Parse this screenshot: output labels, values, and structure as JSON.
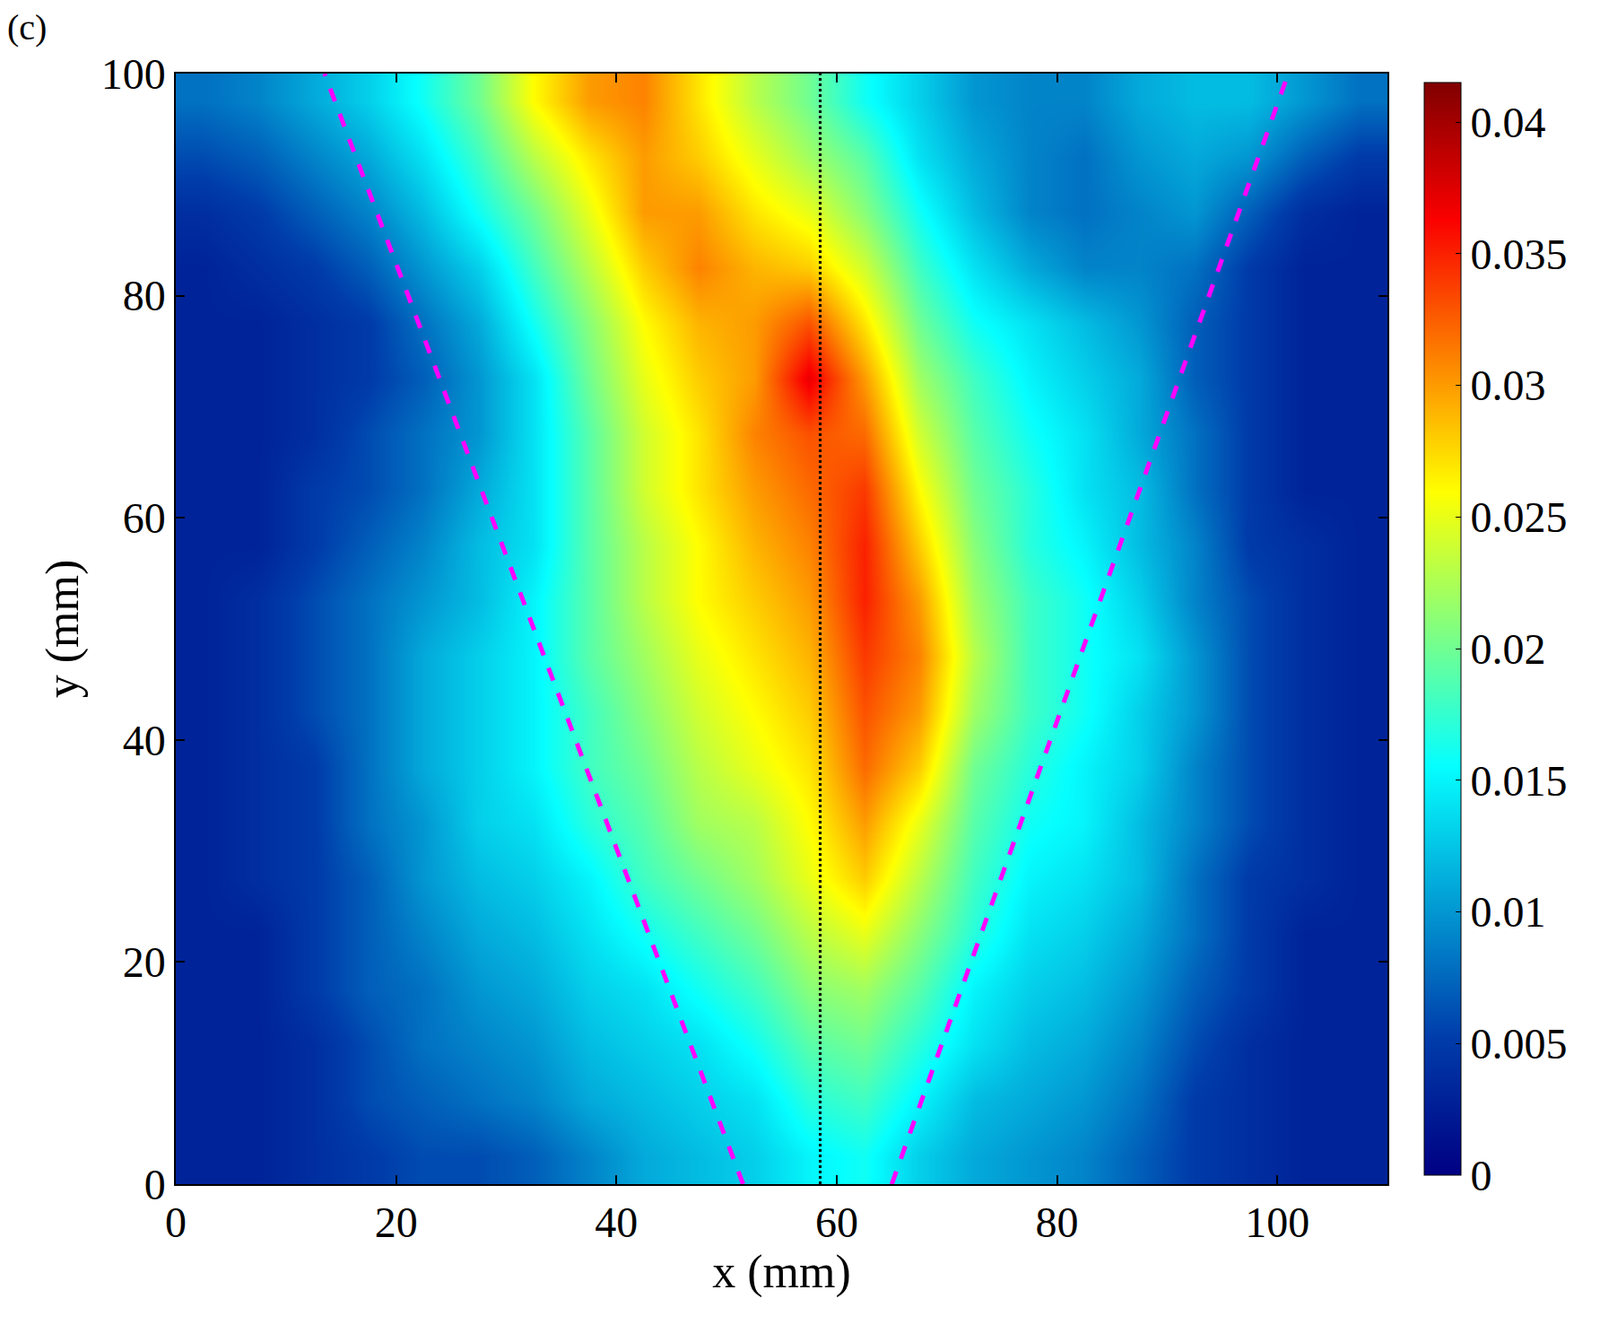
{
  "chart_data": {
    "type": "heatmap",
    "panel_label": "(c)",
    "x_label": "x (mm)",
    "y_label": "y (mm)",
    "xlim": [
      0,
      110
    ],
    "ylim": [
      0,
      100
    ],
    "xticks": [
      0,
      20,
      40,
      60,
      80,
      100
    ],
    "yticks": [
      0,
      20,
      40,
      60,
      80,
      100
    ],
    "grid": false,
    "color": "Jet",
    "color_range": [
      0,
      0.0415
    ],
    "color_ticks": [
      0,
      0.005,
      0.01,
      0.015,
      0.02,
      0.025,
      0.03,
      0.035,
      0.04
    ],
    "x": [
      2.5,
      7.5,
      12.5,
      17.5,
      22.5,
      27.5,
      32.5,
      37.5,
      42.5,
      47.5,
      52.5,
      57.5,
      62.5,
      67.5,
      72.5,
      77.5,
      82.5,
      87.5,
      92.5,
      97.5,
      102.5,
      107.5
    ],
    "y": [
      2.5,
      7.5,
      12.5,
      17.5,
      22.5,
      27.5,
      32.5,
      37.5,
      42.5,
      47.5,
      52.5,
      57.5,
      62.5,
      67.5,
      72.5,
      77.5,
      82.5,
      87.5,
      92.5,
      97.5
    ],
    "z": [
      [
        0.003,
        0.003,
        0.004,
        0.005,
        0.006,
        0.006,
        0.007,
        0.009,
        0.011,
        0.012,
        0.013,
        0.015,
        0.016,
        0.013,
        0.011,
        0.01,
        0.009,
        0.007,
        0.005,
        0.004,
        0.003,
        0.003
      ],
      [
        0.003,
        0.003,
        0.004,
        0.006,
        0.007,
        0.008,
        0.009,
        0.011,
        0.012,
        0.013,
        0.014,
        0.017,
        0.018,
        0.015,
        0.012,
        0.011,
        0.01,
        0.008,
        0.005,
        0.004,
        0.003,
        0.003
      ],
      [
        0.003,
        0.003,
        0.004,
        0.006,
        0.008,
        0.009,
        0.01,
        0.012,
        0.013,
        0.014,
        0.016,
        0.019,
        0.02,
        0.017,
        0.014,
        0.012,
        0.011,
        0.009,
        0.006,
        0.004,
        0.003,
        0.003
      ],
      [
        0.003,
        0.003,
        0.005,
        0.007,
        0.008,
        0.01,
        0.011,
        0.013,
        0.014,
        0.016,
        0.018,
        0.021,
        0.022,
        0.019,
        0.015,
        0.013,
        0.012,
        0.01,
        0.007,
        0.005,
        0.003,
        0.003
      ],
      [
        0.003,
        0.003,
        0.005,
        0.007,
        0.009,
        0.011,
        0.012,
        0.014,
        0.016,
        0.018,
        0.02,
        0.023,
        0.025,
        0.021,
        0.017,
        0.014,
        0.013,
        0.011,
        0.008,
        0.005,
        0.003,
        0.003
      ],
      [
        0.003,
        0.004,
        0.005,
        0.007,
        0.01,
        0.012,
        0.013,
        0.015,
        0.018,
        0.02,
        0.022,
        0.025,
        0.028,
        0.023,
        0.018,
        0.015,
        0.014,
        0.012,
        0.008,
        0.005,
        0.004,
        0.003
      ],
      [
        0.003,
        0.004,
        0.005,
        0.008,
        0.01,
        0.013,
        0.014,
        0.017,
        0.019,
        0.022,
        0.023,
        0.026,
        0.03,
        0.025,
        0.019,
        0.016,
        0.015,
        0.012,
        0.009,
        0.006,
        0.004,
        0.003
      ],
      [
        0.003,
        0.004,
        0.005,
        0.008,
        0.011,
        0.013,
        0.015,
        0.018,
        0.02,
        0.023,
        0.025,
        0.027,
        0.032,
        0.028,
        0.02,
        0.017,
        0.015,
        0.013,
        0.009,
        0.006,
        0.004,
        0.003
      ],
      [
        0.003,
        0.004,
        0.006,
        0.008,
        0.011,
        0.013,
        0.015,
        0.018,
        0.021,
        0.024,
        0.026,
        0.028,
        0.033,
        0.03,
        0.022,
        0.018,
        0.016,
        0.013,
        0.01,
        0.006,
        0.004,
        0.003
      ],
      [
        0.003,
        0.004,
        0.006,
        0.008,
        0.011,
        0.013,
        0.015,
        0.019,
        0.022,
        0.025,
        0.027,
        0.029,
        0.034,
        0.031,
        0.023,
        0.018,
        0.016,
        0.014,
        0.01,
        0.006,
        0.004,
        0.003
      ],
      [
        0.003,
        0.004,
        0.006,
        0.008,
        0.01,
        0.012,
        0.015,
        0.019,
        0.023,
        0.026,
        0.028,
        0.03,
        0.035,
        0.03,
        0.022,
        0.018,
        0.016,
        0.013,
        0.009,
        0.006,
        0.004,
        0.003
      ],
      [
        0.003,
        0.003,
        0.005,
        0.007,
        0.009,
        0.012,
        0.014,
        0.019,
        0.023,
        0.026,
        0.029,
        0.031,
        0.035,
        0.028,
        0.021,
        0.017,
        0.015,
        0.012,
        0.009,
        0.005,
        0.004,
        0.003
      ],
      [
        0.003,
        0.003,
        0.005,
        0.006,
        0.008,
        0.011,
        0.014,
        0.019,
        0.024,
        0.027,
        0.03,
        0.032,
        0.034,
        0.026,
        0.02,
        0.017,
        0.014,
        0.012,
        0.008,
        0.005,
        0.003,
        0.003
      ],
      [
        0.003,
        0.003,
        0.004,
        0.006,
        0.008,
        0.01,
        0.014,
        0.019,
        0.024,
        0.027,
        0.031,
        0.033,
        0.032,
        0.024,
        0.019,
        0.016,
        0.014,
        0.011,
        0.008,
        0.005,
        0.003,
        0.003
      ],
      [
        0.003,
        0.003,
        0.004,
        0.005,
        0.007,
        0.01,
        0.014,
        0.02,
        0.025,
        0.028,
        0.03,
        0.037,
        0.03,
        0.022,
        0.018,
        0.015,
        0.013,
        0.011,
        0.007,
        0.005,
        0.003,
        0.003
      ],
      [
        0.003,
        0.003,
        0.004,
        0.005,
        0.008,
        0.011,
        0.016,
        0.021,
        0.026,
        0.029,
        0.03,
        0.033,
        0.027,
        0.02,
        0.016,
        0.014,
        0.012,
        0.01,
        0.007,
        0.005,
        0.003,
        0.003
      ],
      [
        0.003,
        0.004,
        0.005,
        0.007,
        0.01,
        0.013,
        0.018,
        0.023,
        0.028,
        0.031,
        0.029,
        0.028,
        0.024,
        0.018,
        0.014,
        0.011,
        0.009,
        0.009,
        0.008,
        0.005,
        0.003,
        0.003
      ],
      [
        0.004,
        0.005,
        0.007,
        0.009,
        0.012,
        0.016,
        0.02,
        0.025,
        0.03,
        0.03,
        0.027,
        0.025,
        0.021,
        0.016,
        0.012,
        0.009,
        0.008,
        0.009,
        0.01,
        0.007,
        0.004,
        0.003
      ],
      [
        0.006,
        0.007,
        0.009,
        0.011,
        0.014,
        0.018,
        0.023,
        0.027,
        0.03,
        0.028,
        0.025,
        0.022,
        0.019,
        0.014,
        0.011,
        0.009,
        0.008,
        0.01,
        0.011,
        0.01,
        0.007,
        0.005
      ],
      [
        0.008,
        0.009,
        0.011,
        0.013,
        0.016,
        0.02,
        0.026,
        0.03,
        0.031,
        0.027,
        0.023,
        0.02,
        0.016,
        0.013,
        0.01,
        0.009,
        0.009,
        0.011,
        0.012,
        0.012,
        0.01,
        0.008
      ]
    ],
    "lines": [
      {
        "x": [
          51.5,
          13.5
        ],
        "y": [
          0,
          100
        ],
        "color": "#ff00ff",
        "line_style": "dash"
      },
      {
        "x": [
          65,
          101
        ],
        "y": [
          0,
          100
        ],
        "color": "#ff00ff",
        "line_style": "dash"
      },
      {
        "x": [
          58.5,
          58.5
        ],
        "y": [
          0,
          100
        ],
        "color": "#000000",
        "line_style": "dot"
      }
    ]
  }
}
